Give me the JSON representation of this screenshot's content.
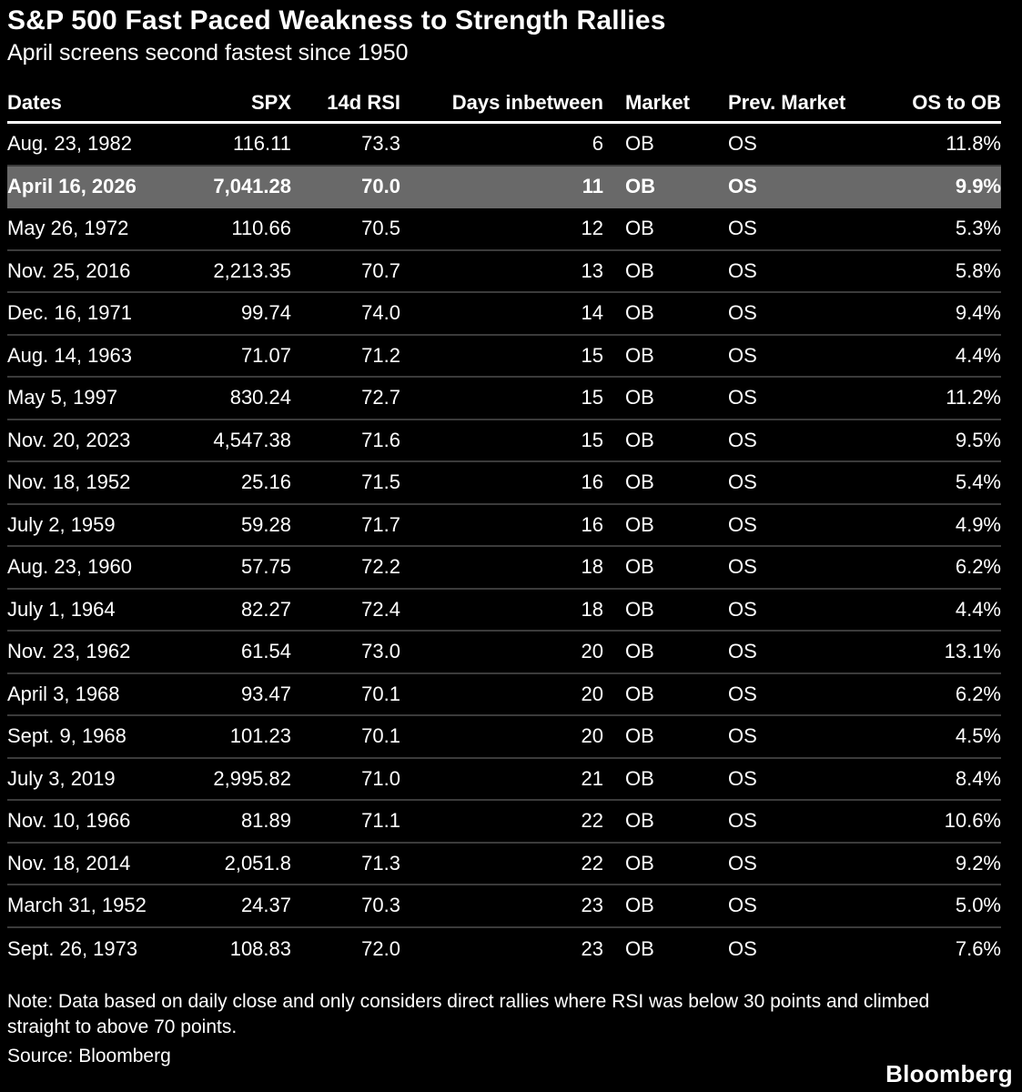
{
  "header": {
    "title": "S&P 500 Fast Paced Weakness to Strength Rallies",
    "subtitle": "April screens second fastest since 1950"
  },
  "chart_data": {
    "type": "table",
    "title": "S&P 500 Fast Paced Weakness to Strength Rallies",
    "subtitle": "April screens second fastest since 1950",
    "columns": [
      "Dates",
      "SPX",
      "14d RSI",
      "Days inbetween",
      "Market",
      "Prev. Market",
      "OS to OB"
    ],
    "rows": [
      [
        "Aug. 23, 1982",
        "116.11",
        "73.3",
        "6",
        "OB",
        "OS",
        "11.8%"
      ],
      [
        "April 16, 2026",
        "7,041.28",
        "70.0",
        "11",
        "OB",
        "OS",
        "9.9%"
      ],
      [
        "May 26, 1972",
        "110.66",
        "70.5",
        "12",
        "OB",
        "OS",
        "5.3%"
      ],
      [
        "Nov. 25, 2016",
        "2,213.35",
        "70.7",
        "13",
        "OB",
        "OS",
        "5.8%"
      ],
      [
        "Dec. 16, 1971",
        "99.74",
        "74.0",
        "14",
        "OB",
        "OS",
        "9.4%"
      ],
      [
        "Aug. 14, 1963",
        "71.07",
        "71.2",
        "15",
        "OB",
        "OS",
        "4.4%"
      ],
      [
        "May 5, 1997",
        "830.24",
        "72.7",
        "15",
        "OB",
        "OS",
        "11.2%"
      ],
      [
        "Nov. 20, 2023",
        "4,547.38",
        "71.6",
        "15",
        "OB",
        "OS",
        "9.5%"
      ],
      [
        "Nov. 18, 1952",
        "25.16",
        "71.5",
        "16",
        "OB",
        "OS",
        "5.4%"
      ],
      [
        "July 2, 1959",
        "59.28",
        "71.7",
        "16",
        "OB",
        "OS",
        "4.9%"
      ],
      [
        "Aug. 23, 1960",
        "57.75",
        "72.2",
        "18",
        "OB",
        "OS",
        "6.2%"
      ],
      [
        "July 1, 1964",
        "82.27",
        "72.4",
        "18",
        "OB",
        "OS",
        "4.4%"
      ],
      [
        "Nov. 23, 1962",
        "61.54",
        "73.0",
        "20",
        "OB",
        "OS",
        "13.1%"
      ],
      [
        "April 3, 1968",
        "93.47",
        "70.1",
        "20",
        "OB",
        "OS",
        "6.2%"
      ],
      [
        "Sept. 9, 1968",
        "101.23",
        "70.1",
        "20",
        "OB",
        "OS",
        "4.5%"
      ],
      [
        "July 3, 2019",
        "2,995.82",
        "71.0",
        "21",
        "OB",
        "OS",
        "8.4%"
      ],
      [
        "Nov. 10, 1966",
        "81.89",
        "71.1",
        "22",
        "OB",
        "OS",
        "10.6%"
      ],
      [
        "Nov. 18, 2014",
        "2,051.8",
        "71.3",
        "22",
        "OB",
        "OS",
        "9.2%"
      ],
      [
        "March 31, 1952",
        "24.37",
        "70.3",
        "23",
        "OB",
        "OS",
        "5.0%"
      ],
      [
        "Sept. 26, 1973",
        "108.83",
        "72.0",
        "23",
        "OB",
        "OS",
        "7.6%"
      ]
    ],
    "highlighted_row_index": 1,
    "highlighted_row_date": "April 16, 2026"
  },
  "footer": {
    "note": "Note: Data based on daily close and only considers direct rallies where RSI was below 30 points and climbed straight to above 70 points.",
    "source": "Source: Bloomberg",
    "brand": "Bloomberg"
  },
  "colors": {
    "background": "#000000",
    "text": "#ffffff",
    "highlight_row_background": "#696969",
    "row_separator": "#3b3b3b",
    "header_underline": "#ffffff"
  }
}
